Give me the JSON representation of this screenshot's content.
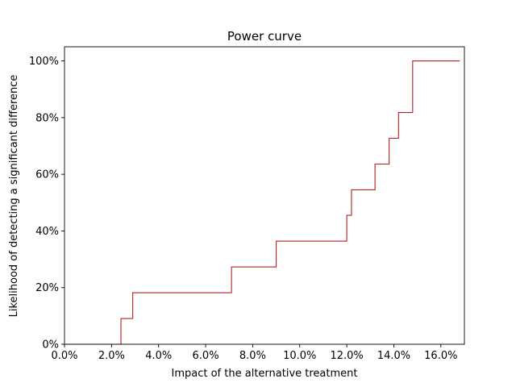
{
  "chart_data": {
    "type": "line",
    "step": true,
    "title": "Power curve",
    "xlabel": "Impact of the alternative treatment",
    "ylabel": "Likelihood of detecting a significant difference",
    "xlim": [
      0,
      0.17
    ],
    "ylim": [
      0,
      1.05
    ],
    "xticks": [
      0,
      0.02,
      0.04,
      0.06,
      0.08,
      0.1,
      0.12,
      0.14,
      0.16
    ],
    "xtick_labels": [
      "0.0%",
      "2.0%",
      "4.0%",
      "6.0%",
      "8.0%",
      "10.0%",
      "12.0%",
      "14.0%",
      "16.0%"
    ],
    "yticks": [
      0,
      0.2,
      0.4,
      0.6,
      0.8,
      1.0
    ],
    "ytick_labels": [
      "0%",
      "20%",
      "40%",
      "60%",
      "80%",
      "100%"
    ],
    "grid": false,
    "series": [
      {
        "color": "#b22222",
        "x": [
          0.0,
          0.024,
          0.024,
          0.029,
          0.029,
          0.071,
          0.071,
          0.09,
          0.09,
          0.12,
          0.12,
          0.122,
          0.122,
          0.132,
          0.132,
          0.138,
          0.138,
          0.142,
          0.142,
          0.148,
          0.148,
          0.168
        ],
        "y": [
          0.0,
          0.0,
          0.091,
          0.091,
          0.182,
          0.182,
          0.273,
          0.273,
          0.364,
          0.364,
          0.455,
          0.455,
          0.545,
          0.545,
          0.636,
          0.636,
          0.727,
          0.727,
          0.818,
          0.818,
          1.0,
          1.0
        ]
      }
    ]
  }
}
